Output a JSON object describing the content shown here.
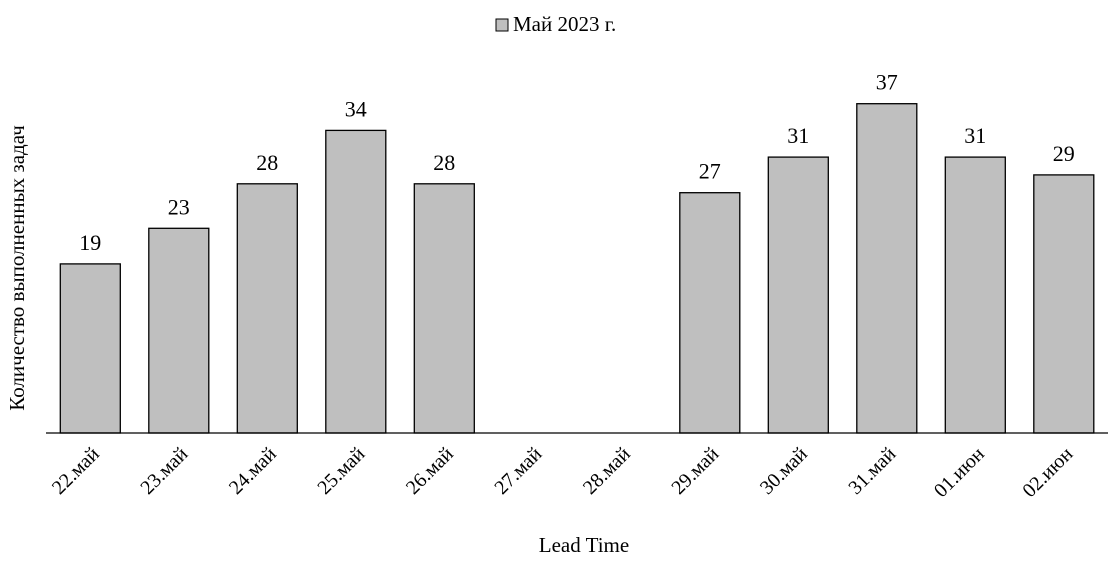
{
  "chart_data": {
    "type": "bar",
    "title": "",
    "xlabel": "Lead Time",
    "ylabel": "Количество выполненных задач",
    "legend": {
      "position": "top",
      "entries": [
        {
          "name": "Май 2023 г.",
          "color": "#bfbfbf"
        }
      ]
    },
    "grid": false,
    "y_axis_visible": false,
    "ylim": [
      0,
      40
    ],
    "categories": [
      "22.май",
      "23.май",
      "24.май",
      "25.май",
      "26.май",
      "27.май",
      "28.май",
      "29.май",
      "30.май",
      "31.май",
      "01.июн",
      "02.июн"
    ],
    "series": [
      {
        "name": "Май 2023 г.",
        "color": "#bfbfbf",
        "values": [
          19,
          23,
          28,
          34,
          28,
          null,
          null,
          27,
          31,
          37,
          31,
          29
        ]
      }
    ]
  }
}
